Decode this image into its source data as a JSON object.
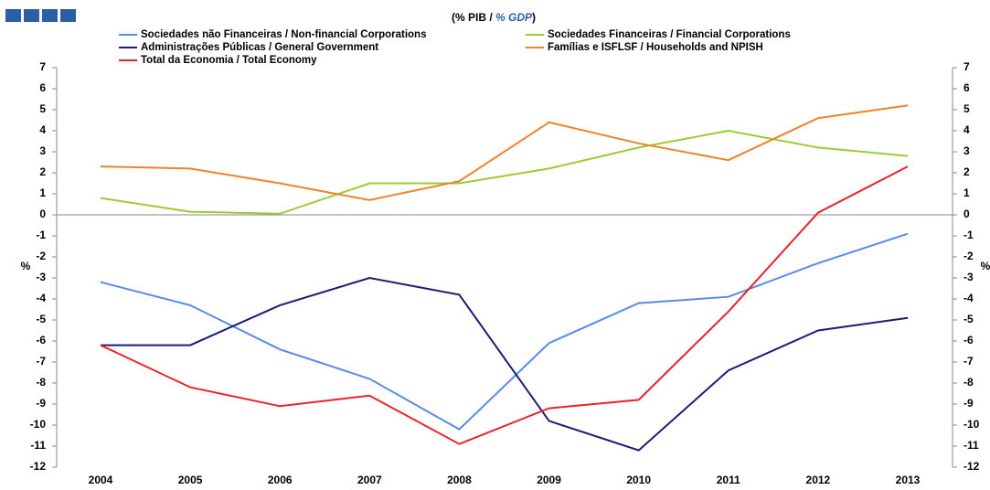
{
  "chart_data": {
    "type": "line",
    "title": [
      "(% PIB / ",
      "% GDP",
      ")"
    ],
    "y_label": "%",
    "y2_label": "%",
    "categories": [
      "2004",
      "2005",
      "2006",
      "2007",
      "2008",
      "2009",
      "2010",
      "2011",
      "2012",
      "2013"
    ],
    "series": [
      {
        "name": "Sociedades não Financeiras / Non-financial Corporations",
        "color": "#5a8ae6",
        "values": [
          -3.2,
          -4.3,
          -6.4,
          -7.8,
          -10.2,
          -6.1,
          -4.2,
          -3.9,
          -2.3,
          -0.9
        ]
      },
      {
        "name": "Sociedades Financeiras / Financial Corporations",
        "color": "#9acd32",
        "values": [
          0.8,
          0.15,
          0.05,
          1.5,
          1.5,
          2.2,
          3.2,
          4.0,
          3.2,
          2.8
        ]
      },
      {
        "name": "Administrações Públicas / General Government",
        "color": "#1c1c72",
        "values": [
          -6.2,
          -6.2,
          -4.3,
          -3.0,
          -3.8,
          -9.8,
          -11.2,
          -7.4,
          -5.5,
          -4.9
        ]
      },
      {
        "name": "Famílias e ISFLSF / Households and NPISH",
        "color": "#f0822c",
        "values": [
          2.3,
          2.2,
          1.5,
          0.7,
          1.6,
          4.4,
          3.4,
          2.6,
          4.6,
          5.2
        ]
      },
      {
        "name": "Total da Economia / Total Economy",
        "color": "#e8232a",
        "values": [
          -6.2,
          -8.2,
          -9.1,
          -8.6,
          -10.9,
          -9.2,
          -8.8,
          -4.6,
          0.1,
          2.3
        ]
      }
    ],
    "ylim": [
      -12,
      7
    ],
    "yticks": [
      -12,
      -11,
      -10,
      -9,
      -8,
      -7,
      -6,
      -5,
      -4,
      -3,
      -2,
      -1,
      0,
      1,
      2,
      3,
      4,
      5,
      6,
      7
    ],
    "y2lim": [
      -12,
      7
    ],
    "y2ticks": [
      -12,
      -11,
      -10,
      -9,
      -8,
      -7,
      -6,
      -5,
      -4,
      -3,
      -2,
      -1,
      0,
      1,
      2,
      3,
      4,
      5,
      6,
      7
    ]
  }
}
